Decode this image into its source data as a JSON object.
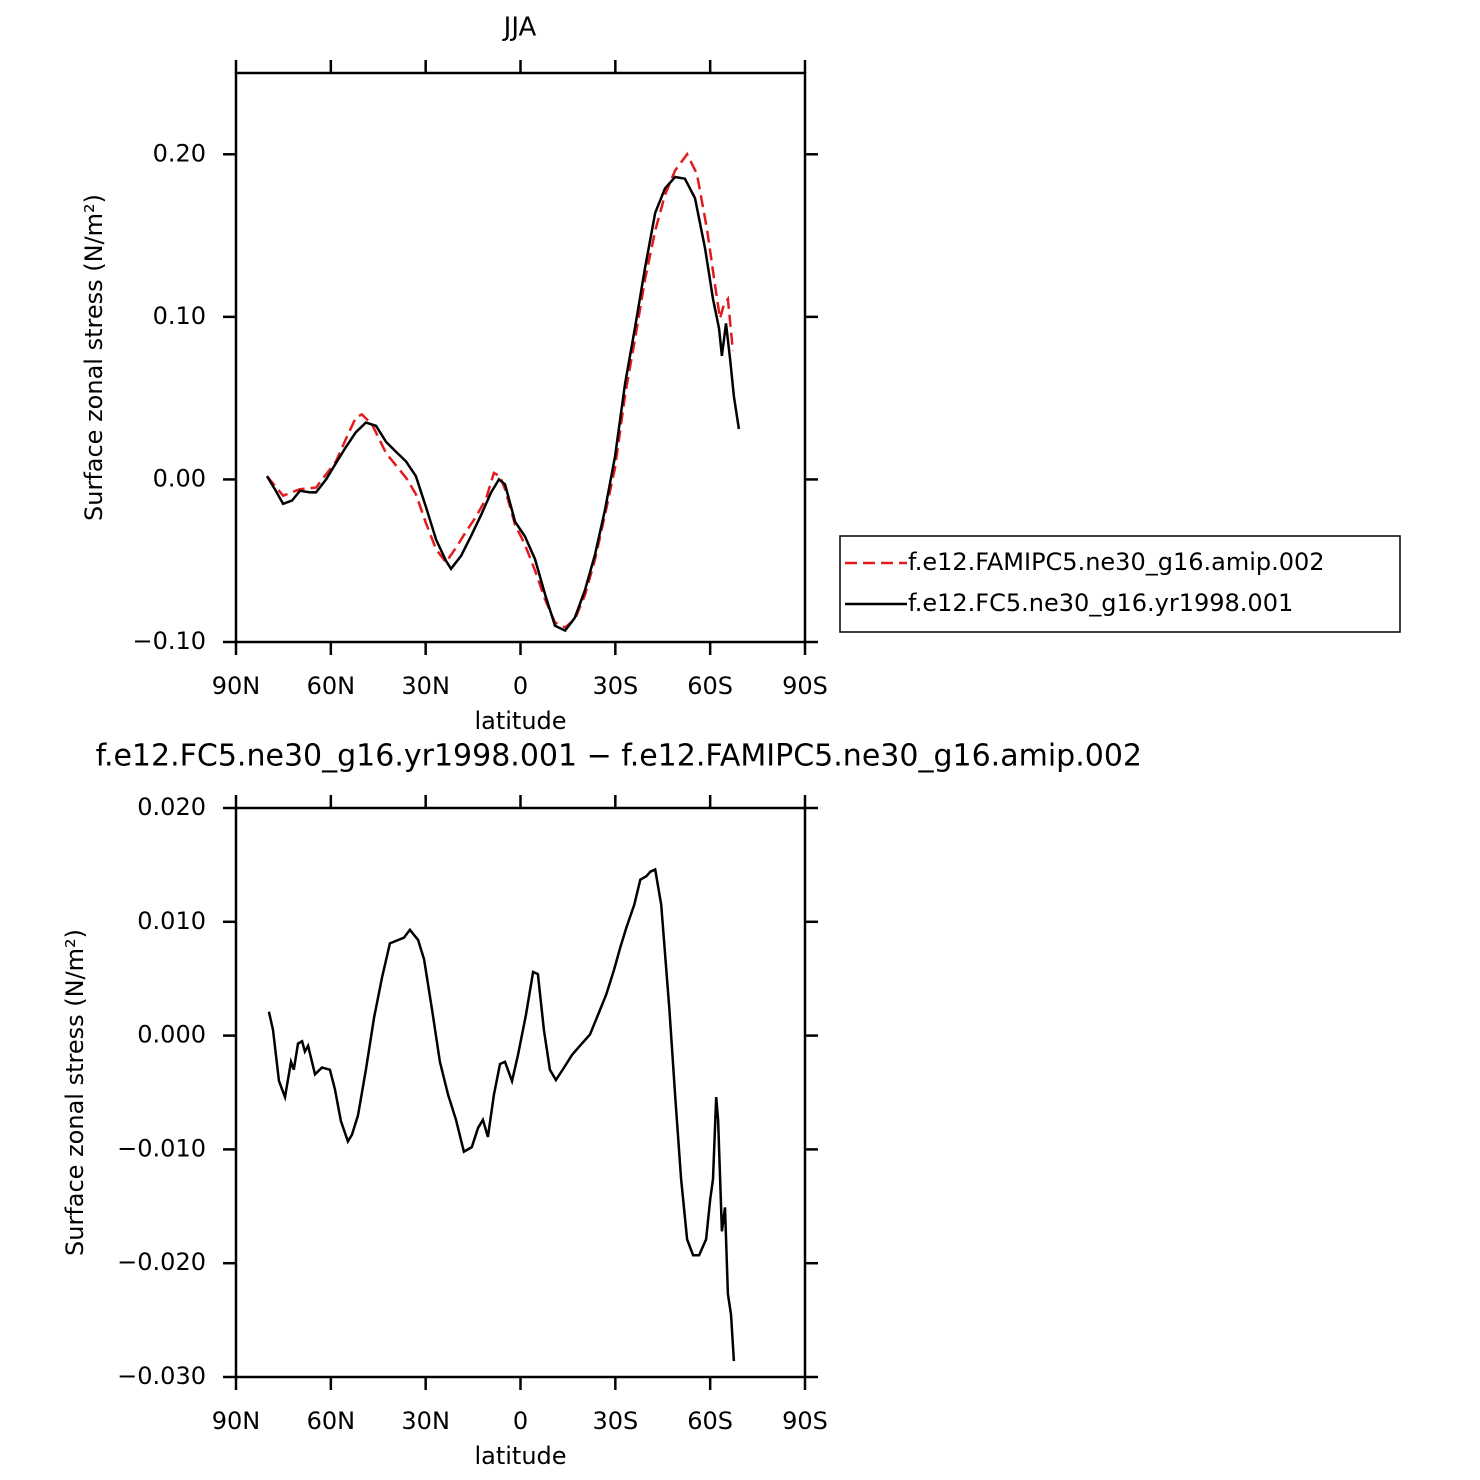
{
  "chart_data": [
    {
      "type": "line",
      "title": "JJA",
      "xlabel": "latitude",
      "ylabel": "Surface zonal stress (N/m²)",
      "xlim": [
        90,
        -90
      ],
      "xticks": [
        {
          "value": 90,
          "label": "90N"
        },
        {
          "value": 60,
          "label": "60N"
        },
        {
          "value": 30,
          "label": "30N"
        },
        0,
        {
          "value": -30,
          "label": "30S"
        },
        {
          "value": -60,
          "label": "60S"
        },
        {
          "value": -90,
          "label": "90S"
        }
      ],
      "ylim": [
        -0.1,
        0.25
      ],
      "yticks": [
        {
          "value": -0.1,
          "label": "−0.10"
        },
        {
          "value": 0,
          "label": "0.00"
        },
        {
          "value": 0.1,
          "label": "0.10"
        },
        {
          "value": 0.2,
          "label": "0.20"
        }
      ],
      "legend": "right",
      "series": [
        {
          "name": "f.e12.FAMIPC5.ne30_g16.amip.002",
          "color": "#e41a1c",
          "linestyle": "dashed",
          "x": [
            80.2,
            75.1,
            69.8,
            64.7,
            58.4,
            55.2,
            52.1,
            50.2,
            47.0,
            42.5,
            36.2,
            33.1,
            29.9,
            26.7,
            23.6,
            20.4,
            17.2,
            14.1,
            10.9,
            8.4,
            6.5,
            4.9,
            1.7,
            -1.4,
            -4.6,
            -7.8,
            -10.9,
            -14.1,
            -17.2,
            -20.4,
            -23.6,
            -26.7,
            -29.9,
            -33.1,
            -36.2,
            -39.4,
            -42.6,
            -45.7,
            -48.9,
            -52.7,
            -55.8,
            -59.0,
            -61.5,
            -63.1,
            -64.4,
            -65.6,
            -67.2
          ],
          "values": [
            0.002,
            -0.01,
            -0.006,
            -0.005,
            0.011,
            0.025,
            0.038,
            0.04,
            0.034,
            0.016,
            0.001,
            -0.009,
            -0.027,
            -0.043,
            -0.051,
            -0.042,
            -0.032,
            -0.023,
            -0.012,
            0.004,
            0.002,
            -0.006,
            -0.028,
            -0.04,
            -0.056,
            -0.074,
            -0.088,
            -0.091,
            -0.086,
            -0.071,
            -0.049,
            -0.022,
            0.007,
            0.052,
            0.086,
            0.123,
            0.153,
            0.175,
            0.19,
            0.2,
            0.188,
            0.154,
            0.12,
            0.099,
            0.108,
            0.111,
            0.079
          ]
        },
        {
          "name": "f.e12.FC5.ne30_g16.yr1998.001",
          "color": "#000000",
          "linestyle": "solid",
          "x": [
            80.2,
            77.7,
            75.1,
            72.3,
            69.8,
            66.6,
            64.7,
            61.5,
            58.4,
            55.2,
            52.1,
            48.9,
            45.7,
            42.5,
            39.4,
            36.2,
            33.1,
            29.9,
            26.7,
            23.6,
            22.0,
            18.8,
            15.7,
            12.5,
            9.3,
            6.8,
            4.9,
            1.7,
            -1.4,
            -4.6,
            -7.8,
            -10.9,
            -14.1,
            -17.2,
            -20.4,
            -23.6,
            -26.7,
            -29.9,
            -33.1,
            -36.2,
            -39.4,
            -42.6,
            -45.7,
            -48.9,
            -52.0,
            -55.2,
            -58.4,
            -60.9,
            -62.8,
            -63.7,
            -65.0,
            -66.3,
            -67.5,
            -69.1
          ],
          "values": [
            0.002,
            -0.006,
            -0.015,
            -0.013,
            -0.007,
            -0.008,
            -0.008,
            0.0,
            0.01,
            0.02,
            0.029,
            0.035,
            0.033,
            0.023,
            0.017,
            0.011,
            0.002,
            -0.017,
            -0.037,
            -0.05,
            -0.055,
            -0.047,
            -0.035,
            -0.022,
            -0.008,
            0.0,
            -0.003,
            -0.026,
            -0.035,
            -0.049,
            -0.071,
            -0.09,
            -0.093,
            -0.085,
            -0.068,
            -0.046,
            -0.019,
            0.014,
            0.059,
            0.093,
            0.13,
            0.164,
            0.179,
            0.186,
            0.185,
            0.173,
            0.142,
            0.111,
            0.093,
            0.076,
            0.096,
            0.074,
            0.051,
            0.031
          ]
        }
      ]
    },
    {
      "type": "line",
      "title": "f.e12.FC5.ne30_g16.yr1998.001 − f.e12.FAMIPC5.ne30_g16.amip.002",
      "xlabel": "latitude",
      "ylabel": "Surface zonal stress (N/m²)",
      "xlim": [
        90,
        -90
      ],
      "xticks": [
        {
          "value": 90,
          "label": "90N"
        },
        {
          "value": 60,
          "label": "60N"
        },
        {
          "value": 30,
          "label": "30N"
        },
        0,
        {
          "value": -30,
          "label": "30S"
        },
        {
          "value": -60,
          "label": "60S"
        },
        {
          "value": -90,
          "label": "90S"
        }
      ],
      "ylim": [
        -0.03,
        0.02
      ],
      "yticks": [
        {
          "value": -0.03,
          "label": "−0.030"
        },
        {
          "value": -0.02,
          "label": "−0.020"
        },
        {
          "value": -0.01,
          "label": "−0.010"
        },
        {
          "value": 0,
          "label": "0.000"
        },
        {
          "value": 0.01,
          "label": "0.010"
        },
        {
          "value": 0.02,
          "label": "0.020"
        }
      ],
      "series": [
        {
          "color": "#000000",
          "linestyle": "solid",
          "x": [
            79.6,
            78.3,
            76.4,
            74.5,
            72.6,
            71.7,
            70.4,
            69.1,
            68.2,
            67.2,
            65.0,
            62.8,
            60.3,
            58.7,
            56.8,
            54.6,
            53.3,
            51.4,
            48.9,
            46.3,
            43.8,
            41.3,
            38.7,
            36.9,
            35.0,
            32.4,
            30.5,
            28.0,
            25.5,
            22.9,
            20.4,
            17.9,
            15.4,
            13.4,
            11.9,
            10.3,
            8.4,
            6.5,
            4.9,
            2.7,
            0.8,
            -1.7,
            -4.0,
            -5.5,
            -7.4,
            -9.3,
            -11.2,
            -13.8,
            -16.3,
            -18.8,
            -22.0,
            -24.5,
            -27.1,
            -29.6,
            -31.5,
            -33.5,
            -36.0,
            -37.9,
            -39.8,
            -41.1,
            -42.6,
            -44.5,
            -47.1,
            -49.0,
            -50.8,
            -52.7,
            -54.6,
            -56.5,
            -58.7,
            -60.0,
            -60.9,
            -61.9,
            -62.5,
            -63.7,
            -64.7,
            -65.6,
            -66.6,
            -67.5
          ],
          "values": [
            0.0021,
            0.0005,
            -0.004,
            -0.0054,
            -0.0023,
            -0.003,
            -0.0007,
            -0.0005,
            -0.0014,
            -0.0009,
            -0.0034,
            -0.0028,
            -0.003,
            -0.0047,
            -0.0075,
            -0.0093,
            -0.0087,
            -0.007,
            -0.003,
            0.0016,
            0.0051,
            0.0081,
            0.0084,
            0.0086,
            0.0093,
            0.0084,
            0.0067,
            0.0023,
            -0.0023,
            -0.0052,
            -0.0074,
            -0.0102,
            -0.0098,
            -0.0081,
            -0.0074,
            -0.0089,
            -0.0052,
            -0.0025,
            -0.0023,
            -0.004,
            -0.0017,
            0.0018,
            0.0056,
            0.0054,
            0.0005,
            -0.003,
            -0.0039,
            -0.0028,
            -0.0017,
            -0.0009,
            0.0001,
            0.0018,
            0.0036,
            0.0058,
            0.0077,
            0.0095,
            0.0115,
            0.0137,
            0.014,
            0.0144,
            0.0146,
            0.0115,
            0.0023,
            -0.0056,
            -0.0126,
            -0.0179,
            -0.0193,
            -0.0193,
            -0.0179,
            -0.0144,
            -0.0126,
            -0.0054,
            -0.0074,
            -0.0172,
            -0.0151,
            -0.0227,
            -0.0245,
            -0.0286
          ]
        }
      ]
    }
  ]
}
